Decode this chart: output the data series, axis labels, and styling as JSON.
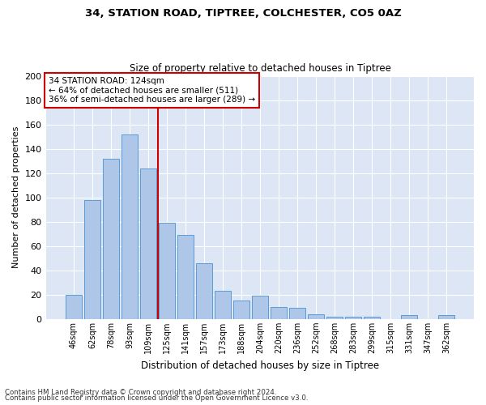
{
  "title_line1": "34, STATION ROAD, TIPTREE, COLCHESTER, CO5 0AZ",
  "title_line2": "Size of property relative to detached houses in Tiptree",
  "xlabel": "Distribution of detached houses by size in Tiptree",
  "ylabel": "Number of detached properties",
  "categories": [
    "46sqm",
    "62sqm",
    "78sqm",
    "93sqm",
    "109sqm",
    "125sqm",
    "141sqm",
    "157sqm",
    "173sqm",
    "188sqm",
    "204sqm",
    "220sqm",
    "236sqm",
    "252sqm",
    "268sqm",
    "283sqm",
    "299sqm",
    "315sqm",
    "331sqm",
    "347sqm",
    "362sqm"
  ],
  "values": [
    20,
    98,
    132,
    152,
    124,
    79,
    69,
    46,
    23,
    15,
    19,
    10,
    9,
    4,
    2,
    2,
    2,
    0,
    3,
    0,
    3
  ],
  "bar_color": "#aec6e8",
  "bar_edge_color": "#5b9bd5",
  "vline_index": 5,
  "ylim": [
    0,
    200
  ],
  "yticks": [
    0,
    20,
    40,
    60,
    80,
    100,
    120,
    140,
    160,
    180,
    200
  ],
  "annotation_title": "34 STATION ROAD: 124sqm",
  "annotation_line1": "← 64% of detached houses are smaller (511)",
  "annotation_line2": "36% of semi-detached houses are larger (289) →",
  "annotation_box_color": "#ffffff",
  "annotation_box_edge": "#cc0000",
  "vline_color": "#cc0000",
  "fig_bg_color": "#ffffff",
  "ax_bg_color": "#dce6f5",
  "footer_line1": "Contains HM Land Registry data © Crown copyright and database right 2024.",
  "footer_line2": "Contains public sector information licensed under the Open Government Licence v3.0."
}
